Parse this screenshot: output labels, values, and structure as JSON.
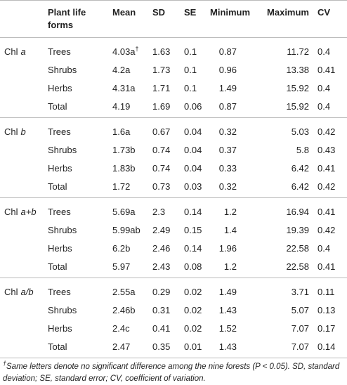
{
  "header": {
    "columns": [
      "Plant life forms",
      "Mean",
      "SD",
      "SE",
      "Minimum",
      "Maximum",
      "CV"
    ]
  },
  "groups": [
    {
      "label_plain": "Chl",
      "label_italic": "a",
      "rows": [
        {
          "form": "Trees",
          "cells": [
            {
              "text": "4.03a",
              "sup": "†"
            },
            "1.63",
            "0.1",
            "0.87",
            "11.72",
            "0.4"
          ]
        },
        {
          "form": "Shrubs",
          "cells": [
            "4.2a",
            "1.73",
            "0.1",
            "0.96",
            "13.38",
            "0.41"
          ]
        },
        {
          "form": "Herbs",
          "cells": [
            "4.31a",
            "1.71",
            "0.1",
            "1.49",
            "15.92",
            "0.4"
          ]
        },
        {
          "form": "Total",
          "cells": [
            "4.19",
            "1.69",
            "0.06",
            "0.87",
            "15.92",
            "0.4"
          ]
        }
      ]
    },
    {
      "label_plain": "Chl",
      "label_italic": "b",
      "rows": [
        {
          "form": "Trees",
          "cells": [
            "1.6a",
            "0.67",
            "0.04",
            "0.32",
            "5.03",
            "0.42"
          ]
        },
        {
          "form": "Shrubs",
          "cells": [
            "1.73b",
            "0.74",
            "0.04",
            "0.37",
            "5.8",
            "0.43"
          ]
        },
        {
          "form": "Herbs",
          "cells": [
            "1.83b",
            "0.74",
            "0.04",
            "0.33",
            "6.42",
            "0.41"
          ]
        },
        {
          "form": "Total",
          "cells": [
            "1.72",
            "0.73",
            "0.03",
            "0.32",
            "6.42",
            "0.42"
          ]
        }
      ]
    },
    {
      "label_plain": "Chl",
      "label_italic": "a+b",
      "rows": [
        {
          "form": "Trees",
          "cells": [
            "5.69a",
            "2.3",
            "0.14",
            "1.2",
            "16.94",
            "0.41"
          ]
        },
        {
          "form": "Shrubs",
          "cells": [
            "5.99ab",
            "2.49",
            "0.15",
            "1.4",
            "19.39",
            "0.42"
          ]
        },
        {
          "form": "Herbs",
          "cells": [
            "6.2b",
            "2.46",
            "0.14",
            "1.96",
            "22.58",
            "0.4"
          ]
        },
        {
          "form": "Total",
          "cells": [
            "5.97",
            "2.43",
            "0.08",
            "1.2",
            "22.58",
            "0.41"
          ]
        }
      ]
    },
    {
      "label_plain": "Chl",
      "label_italic": "a/b",
      "rows": [
        {
          "form": "Trees",
          "cells": [
            "2.55a",
            "0.29",
            "0.02",
            "1.49",
            "3.71",
            "0.11"
          ]
        },
        {
          "form": "Shrubs",
          "cells": [
            "2.46b",
            "0.31",
            "0.02",
            "1.43",
            "5.07",
            "0.13"
          ]
        },
        {
          "form": "Herbs",
          "cells": [
            "2.4c",
            "0.41",
            "0.02",
            "1.52",
            "7.07",
            "0.17"
          ]
        },
        {
          "form": "Total",
          "cells": [
            "2.47",
            "0.35",
            "0.01",
            "1.43",
            "7.07",
            "0.14"
          ]
        }
      ]
    }
  ],
  "footnote": {
    "mark": "†",
    "text": "Same letters denote no significant difference among the nine forests (P < 0.05). SD, standard deviation; SE, standard error; CV, coefficient of variation."
  }
}
